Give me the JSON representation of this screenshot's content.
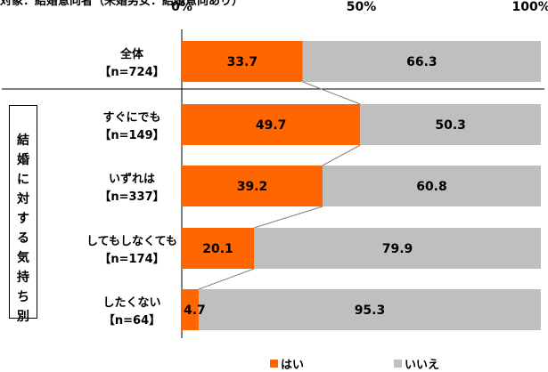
{
  "title": "対象：結婚意向者（未婚男女：結婚意向あり）",
  "group_label": "結婚に対する気持ち別",
  "colors": {
    "yes": "#FF6600",
    "no": "#BFBFBF",
    "connector": "#7F7F7F",
    "separator": "#000000"
  },
  "chart_data": {
    "type": "bar",
    "orientation": "horizontal",
    "stacked": true,
    "percent": true,
    "categories": [
      {
        "name": "全体",
        "n": "【n=724】"
      },
      {
        "name": "すぐにでも",
        "n": "【n=149】"
      },
      {
        "name": "いずれは",
        "n": "【n=337】"
      },
      {
        "name": "してもしなくても",
        "n": "【n=174】"
      },
      {
        "name": "したくない",
        "n": "【n=64】"
      }
    ],
    "series": [
      {
        "name": "はい",
        "values": [
          33.7,
          49.7,
          39.2,
          20.1,
          4.7
        ]
      },
      {
        "name": "いいえ",
        "values": [
          66.3,
          50.3,
          60.8,
          79.9,
          95.3
        ]
      }
    ],
    "xticks": [
      "0%",
      "50%",
      "100%"
    ],
    "xlim": [
      0,
      100
    ],
    "legend": "bottom-center",
    "grid": false
  }
}
